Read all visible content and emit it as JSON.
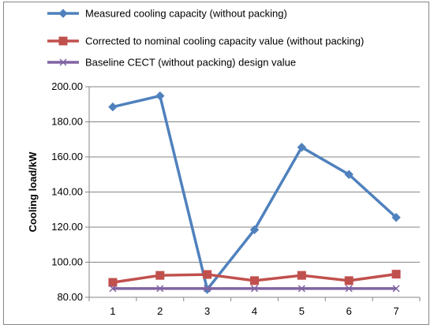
{
  "chart_data": {
    "type": "line",
    "title": "",
    "xlabel": "",
    "ylabel": "Cooling load/kW",
    "categories": [
      "1",
      "2",
      "3",
      "4",
      "5",
      "6",
      "7"
    ],
    "ylim": [
      80,
      200
    ],
    "yticks": [
      "80.00",
      "100.00",
      "120.00",
      "140.00",
      "160.00",
      "180.00",
      "200.00"
    ],
    "grid": "horizontal",
    "legend_position": "top",
    "series": [
      {
        "name": "Measured cooling capacity (without packing)",
        "color": "#4F81BD",
        "marker": "diamond",
        "values": [
          188.5,
          194.8,
          84.5,
          118.5,
          165.5,
          150.0,
          125.5
        ]
      },
      {
        "name": "Corrected to nominal cooling capacity value (without packing)",
        "color": "#C0504D",
        "marker": "square",
        "values": [
          88.5,
          92.5,
          93.0,
          89.5,
          92.5,
          89.5,
          93.2
        ]
      },
      {
        "name": "Baseline CECT (without packing) design value",
        "color": "#8064A2",
        "marker": "x",
        "values": [
          85.0,
          85.0,
          85.0,
          85.0,
          85.0,
          85.0,
          85.0
        ]
      }
    ]
  }
}
